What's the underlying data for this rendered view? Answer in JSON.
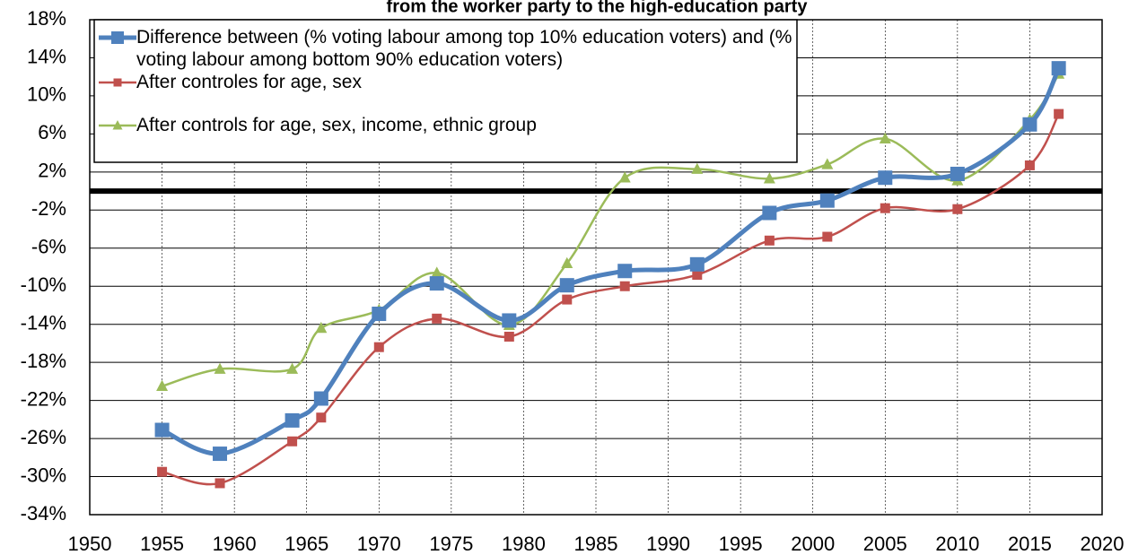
{
  "chart_data": {
    "type": "line",
    "title": "from the worker party to the high-education party",
    "x": [
      1955,
      1959,
      1964,
      1966,
      1970,
      1974,
      1979,
      1983,
      1987,
      1992,
      1997,
      2001,
      2005,
      2010,
      2015,
      2017
    ],
    "series": [
      {
        "name": "Difference between (% voting labour among top 10% education voters) and (% voting labour among bottom 90% education voters)",
        "color": "#4f81bd",
        "marker": "square",
        "values": [
          -25.1,
          -27.6,
          -24.1,
          -21.8,
          -12.9,
          -9.7,
          -13.6,
          -9.9,
          -8.4,
          -7.7,
          -2.3,
          -1.0,
          1.4,
          1.8,
          7.0,
          12.9
        ]
      },
      {
        "name": "After controles for age, sex",
        "color": "#c0504d",
        "marker": "square",
        "values": [
          -29.5,
          -30.7,
          -26.3,
          -23.8,
          -16.4,
          -13.4,
          -15.3,
          -11.4,
          -10.0,
          -8.8,
          -5.2,
          -4.8,
          -1.8,
          -1.9,
          2.7,
          8.1
        ]
      },
      {
        "name": "After controls for age, sex, income, ethnic group",
        "color": "#9bbb59",
        "marker": "triangle",
        "values": [
          -20.5,
          -18.7,
          -18.7,
          -14.4,
          -12.5,
          -8.6,
          -14.1,
          -7.6,
          1.4,
          2.3,
          1.3,
          2.8,
          5.5,
          1.1,
          7.5,
          12.3
        ]
      }
    ],
    "xlim": [
      1950,
      2020
    ],
    "xticks": [
      1950,
      1955,
      1960,
      1965,
      1970,
      1975,
      1980,
      1985,
      1990,
      1995,
      2000,
      2005,
      2010,
      2015,
      2020
    ],
    "ylim": [
      -34,
      18
    ],
    "yticks": [
      {
        "value": -34,
        "label": "-34%"
      },
      {
        "value": -30,
        "label": "-30%"
      },
      {
        "value": -26,
        "label": "-26%"
      },
      {
        "value": -22,
        "label": "-22%"
      },
      {
        "value": -18,
        "label": "-18%"
      },
      {
        "value": -14,
        "label": "-14%"
      },
      {
        "value": -10,
        "label": "-10%"
      },
      {
        "value": -6,
        "label": "-6%"
      },
      {
        "value": -2,
        "label": "-2%"
      },
      {
        "value": 2,
        "label": "2%"
      },
      {
        "value": 6,
        "label": "6%"
      },
      {
        "value": 10,
        "label": "10%"
      },
      {
        "value": 14,
        "label": "14%"
      },
      {
        "value": 18,
        "label": "18%"
      }
    ],
    "grid": true,
    "zero_line": true,
    "smooth": true,
    "legend": "top-left"
  }
}
